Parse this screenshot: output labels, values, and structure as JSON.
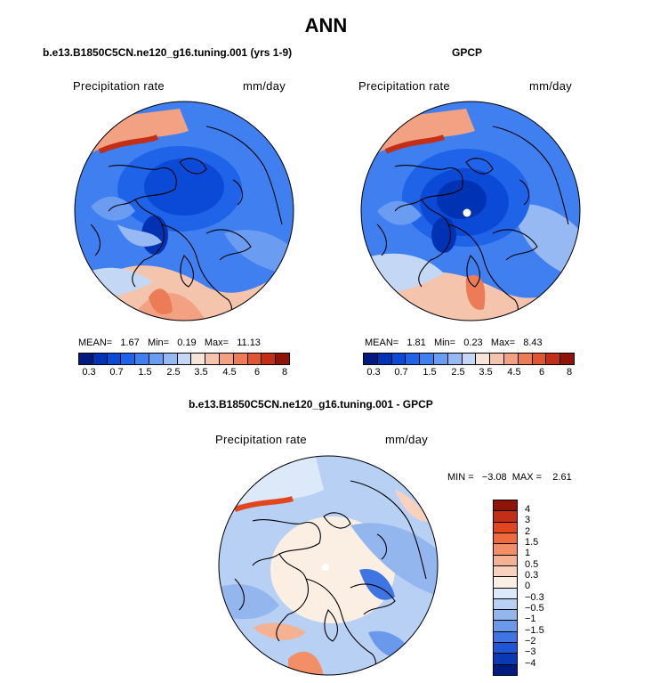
{
  "title": "ANN",
  "panels": [
    {
      "heading": "b.e13.B1850C5CN.ne120_g16.tuning.001 (yrs 1-9)",
      "variable": "Precipitation rate",
      "units": "mm/day",
      "stats": "MEAN=   1.67   Min=   0.19   Max=   11.13"
    },
    {
      "heading": "GPCP",
      "variable": "Precipitation rate",
      "units": "mm/day",
      "stats": "MEAN=   1.81   Min=   0.23   Max=   8.43"
    }
  ],
  "colorbar_top": {
    "colors": [
      "#001a80",
      "#0033b3",
      "#0a4ad6",
      "#1f63e8",
      "#3f7ff0",
      "#6a9cf2",
      "#96b9f4",
      "#c4d8f6",
      "#f7e4d8",
      "#f5c4ad",
      "#f2a183",
      "#ec7b58",
      "#e15532",
      "#c32f16",
      "#8f1408"
    ],
    "labels": [
      "0.3",
      "0.7",
      "1.5",
      "2.5",
      "3.5",
      "4.5",
      "6",
      "8"
    ]
  },
  "diff": {
    "heading": "b.e13.B1850C5CN.ne120_g16.tuning.001 - GPCP",
    "variable": "Precipitation rate",
    "units": "mm/day",
    "stats": "MIN =   −3.08  MAX =    2.61",
    "colors": [
      "#8f1408",
      "#c32f16",
      "#e3461f",
      "#ef6a3d",
      "#f38f67",
      "#f5b293",
      "#f8d2bd",
      "#fbefe4",
      "#dce9f8",
      "#b8d0f4",
      "#93b6ef",
      "#6a98ea",
      "#3f75e3",
      "#1f55d6",
      "#0b38b5",
      "#001c80"
    ],
    "labels": [
      "4",
      "3",
      "2",
      "1.5",
      "1",
      "0.5",
      "0.3",
      "0",
      "−0.3",
      "−0.5",
      "−1",
      "−1.5",
      "−2",
      "−3",
      "−4"
    ]
  }
}
